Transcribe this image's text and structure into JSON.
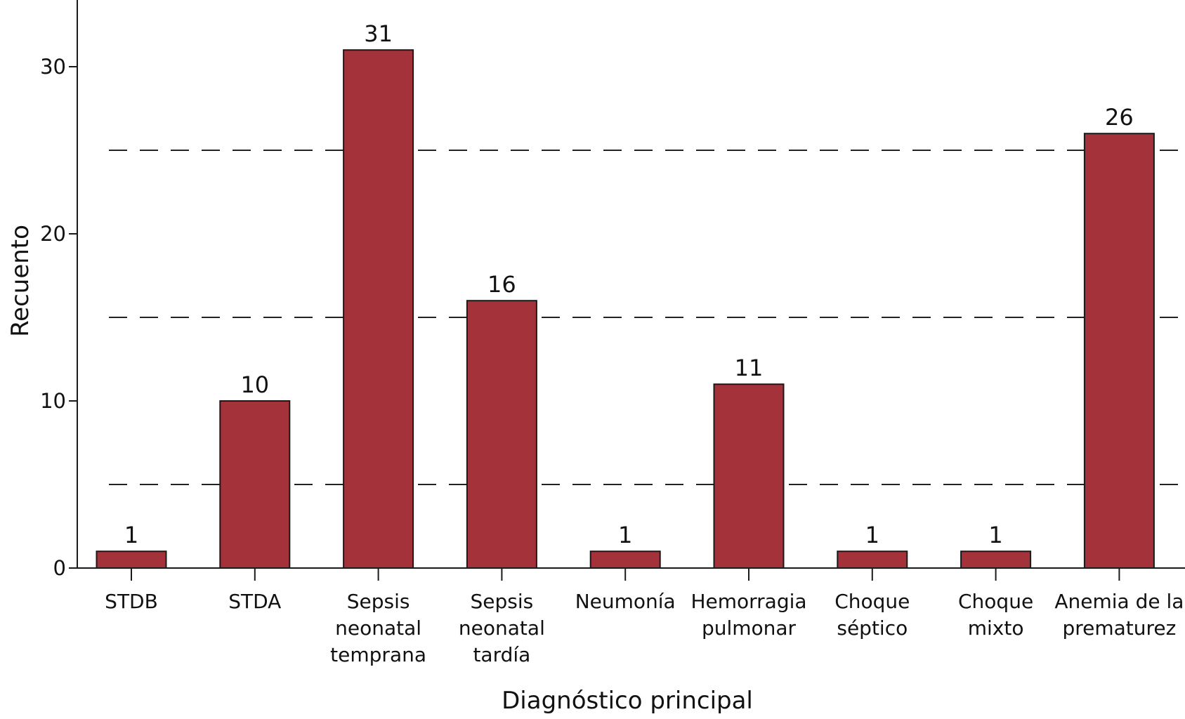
{
  "chart_data": {
    "type": "bar",
    "categories": [
      [
        "STDB"
      ],
      [
        "STDA"
      ],
      [
        "Sepsis",
        "neonatal",
        "temprana"
      ],
      [
        "Sepsis",
        "neonatal",
        "tardía"
      ],
      [
        "Neumonía"
      ],
      [
        "Hemorragia",
        "pulmonar"
      ],
      [
        "Choque",
        "séptico"
      ],
      [
        "Choque",
        "mixto"
      ],
      [
        "Anemia de la",
        "prematurez"
      ]
    ],
    "values": [
      1,
      10,
      31,
      16,
      1,
      11,
      1,
      1,
      26
    ],
    "data_labels": [
      "1",
      "10",
      "31",
      "16",
      "1",
      "11",
      "1",
      "1",
      "26"
    ],
    "xlabel": "Diagnóstico principal",
    "ylabel": "Recuento",
    "ylim": [
      0,
      34
    ],
    "yticks": [
      0,
      10,
      20,
      30
    ],
    "ytick_labels": [
      "0",
      "10",
      "20",
      "30"
    ],
    "reference_lines": [
      5,
      15,
      25
    ],
    "grid": false,
    "colors": {
      "bar": "#a3323a",
      "bar_edge": "#1a1a1a",
      "axis": "#1a1a1a",
      "ref_line": "#222222"
    }
  }
}
